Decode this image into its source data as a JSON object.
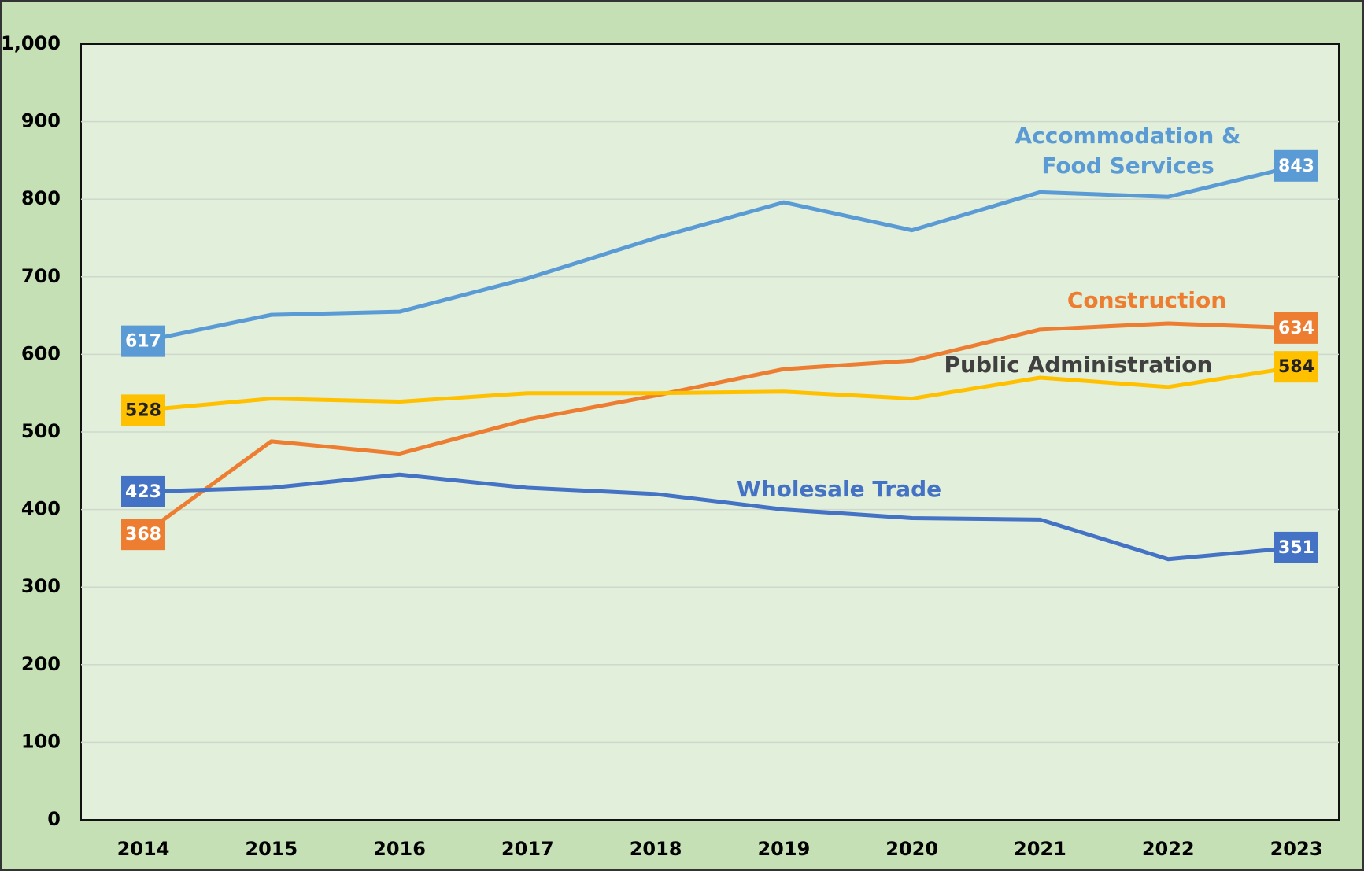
{
  "chart_data": {
    "type": "line",
    "categories": [
      "2014",
      "2015",
      "2016",
      "2017",
      "2018",
      "2019",
      "2020",
      "2021",
      "2022",
      "2023"
    ],
    "series": [
      {
        "name": "Accommodation & Food Services",
        "color": "#5b9bd5",
        "values": [
          617,
          651,
          655,
          698,
          750,
          796,
          760,
          809,
          803,
          843
        ]
      },
      {
        "name": "Construction",
        "color": "#ed7d31",
        "values": [
          368,
          488,
          472,
          516,
          547,
          581,
          592,
          632,
          640,
          634
        ]
      },
      {
        "name": "Public Administration",
        "color": "#ffc000",
        "values": [
          528,
          543,
          539,
          550,
          550,
          552,
          543,
          570,
          558,
          584
        ]
      },
      {
        "name": "Wholesale Trade",
        "color": "#4472c4",
        "values": [
          423,
          428,
          445,
          428,
          420,
          400,
          389,
          387,
          336,
          351
        ]
      }
    ],
    "ylim": [
      0,
      1000
    ],
    "yticks": [
      0,
      100,
      200,
      300,
      400,
      500,
      600,
      700,
      800,
      {
        "value": 900,
        "label": "900"
      },
      {
        "value": 1000,
        "label": "1,000"
      }
    ],
    "grid": true
  }
}
